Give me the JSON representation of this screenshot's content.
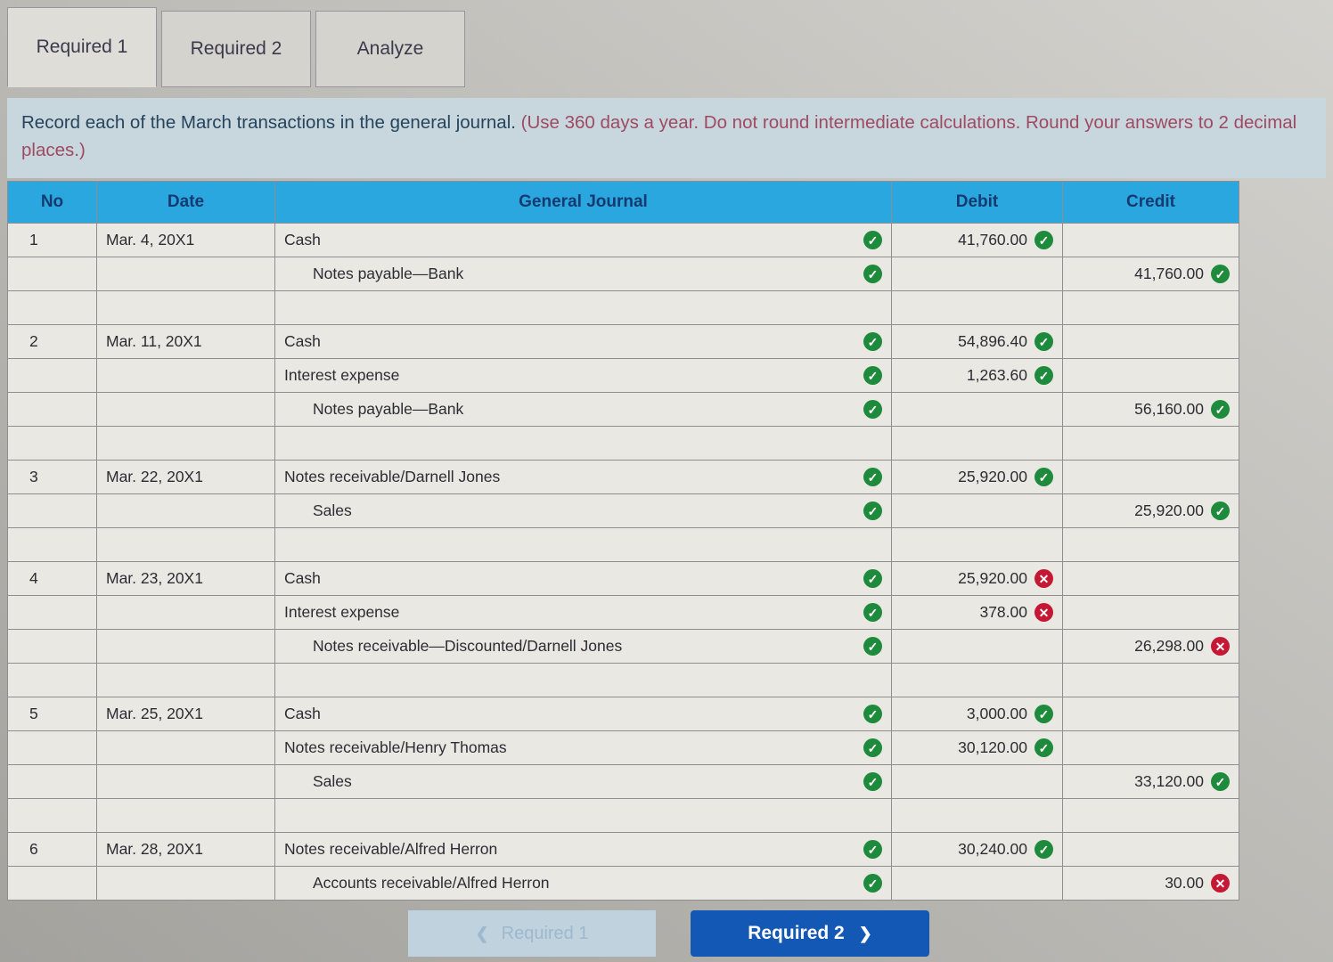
{
  "tabs": [
    {
      "label": "Required 1",
      "active": true
    },
    {
      "label": "Required 2",
      "active": false
    },
    {
      "label": "Analyze",
      "active": false
    }
  ],
  "instructions": {
    "main": "Record each of the March transactions in the general journal.",
    "note": "(Use 360 days a year. Do not round intermediate calculations. Round your answers to 2 decimal places.)"
  },
  "table": {
    "headers": {
      "no": "No",
      "date": "Date",
      "journal": "General Journal",
      "debit": "Debit",
      "credit": "Credit"
    },
    "rows": [
      {
        "no": "1",
        "date": "Mar. 4, 20X1",
        "account": "Cash",
        "indent": 0,
        "line_mark": "check",
        "debit": "41,760.00",
        "debit_mark": "check",
        "credit": "",
        "credit_mark": ""
      },
      {
        "no": "",
        "date": "",
        "account": "Notes payable—Bank",
        "indent": 1,
        "line_mark": "check",
        "debit": "",
        "debit_mark": "",
        "credit": "41,760.00",
        "credit_mark": "check"
      },
      {
        "blank": true
      },
      {
        "no": "2",
        "date": "Mar. 11, 20X1",
        "account": "Cash",
        "indent": 0,
        "line_mark": "check",
        "debit": "54,896.40",
        "debit_mark": "check",
        "credit": "",
        "credit_mark": ""
      },
      {
        "no": "",
        "date": "",
        "account": "Interest expense",
        "indent": 0,
        "line_mark": "check",
        "debit": "1,263.60",
        "debit_mark": "check",
        "credit": "",
        "credit_mark": ""
      },
      {
        "no": "",
        "date": "",
        "account": "Notes payable—Bank",
        "indent": 1,
        "line_mark": "check",
        "debit": "",
        "debit_mark": "",
        "credit": "56,160.00",
        "credit_mark": "check"
      },
      {
        "blank": true
      },
      {
        "no": "3",
        "date": "Mar. 22, 20X1",
        "account": "Notes receivable/Darnell Jones",
        "indent": 0,
        "line_mark": "check",
        "debit": "25,920.00",
        "debit_mark": "check",
        "credit": "",
        "credit_mark": ""
      },
      {
        "no": "",
        "date": "",
        "account": "Sales",
        "indent": 1,
        "line_mark": "check",
        "debit": "",
        "debit_mark": "",
        "credit": "25,920.00",
        "credit_mark": "check"
      },
      {
        "blank": true
      },
      {
        "no": "4",
        "date": "Mar. 23, 20X1",
        "account": "Cash",
        "indent": 0,
        "line_mark": "check",
        "debit": "25,920.00",
        "debit_mark": "cross",
        "credit": "",
        "credit_mark": ""
      },
      {
        "no": "",
        "date": "",
        "account": "Interest expense",
        "indent": 0,
        "line_mark": "check",
        "debit": "378.00",
        "debit_mark": "cross",
        "credit": "",
        "credit_mark": ""
      },
      {
        "no": "",
        "date": "",
        "account": "Notes receivable—Discounted/Darnell Jones",
        "indent": 1,
        "line_mark": "check",
        "debit": "",
        "debit_mark": "",
        "credit": "26,298.00",
        "credit_mark": "cross"
      },
      {
        "blank": true
      },
      {
        "no": "5",
        "date": "Mar. 25, 20X1",
        "account": "Cash",
        "indent": 0,
        "line_mark": "check",
        "debit": "3,000.00",
        "debit_mark": "check",
        "credit": "",
        "credit_mark": ""
      },
      {
        "no": "",
        "date": "",
        "account": "Notes receivable/Henry Thomas",
        "indent": 0,
        "line_mark": "check",
        "debit": "30,120.00",
        "debit_mark": "check",
        "credit": "",
        "credit_mark": ""
      },
      {
        "no": "",
        "date": "",
        "account": "Sales",
        "indent": 1,
        "line_mark": "check",
        "debit": "",
        "debit_mark": "",
        "credit": "33,120.00",
        "credit_mark": "check"
      },
      {
        "blank": true
      },
      {
        "no": "6",
        "date": "Mar. 28, 20X1",
        "account": "Notes receivable/Alfred Herron",
        "indent": 0,
        "line_mark": "check",
        "debit": "30,240.00",
        "debit_mark": "check",
        "credit": "",
        "credit_mark": ""
      },
      {
        "no": "",
        "date": "",
        "account": "Accounts receivable/Alfred Herron",
        "indent": 1,
        "line_mark": "check",
        "debit": "",
        "debit_mark": "",
        "credit": "30.00",
        "credit_mark": "cross"
      }
    ]
  },
  "footer": {
    "prev_button": {
      "label": "Required 1",
      "chevron": "❮"
    },
    "next_button": {
      "label": "Required 2",
      "chevron": "❯"
    }
  },
  "colors": {
    "table_header_bg": "#2ba7e0",
    "table_header_text": "#143a70",
    "correct_green": "#1e8a3c",
    "incorrect_red": "#c41834",
    "next_button_blue": "#1458b6"
  }
}
